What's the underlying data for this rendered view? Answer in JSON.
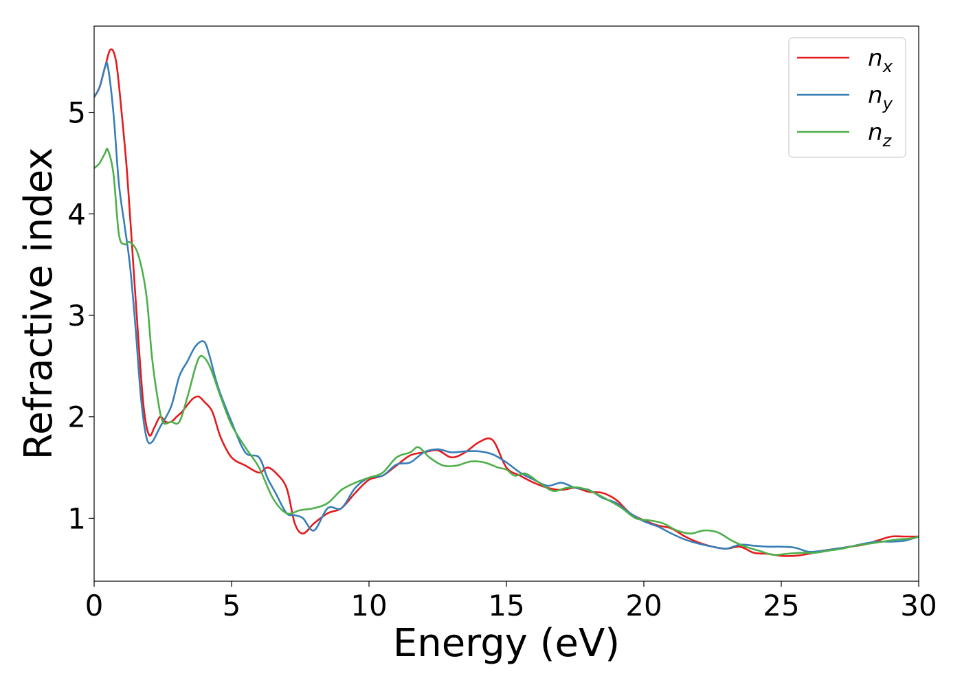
{
  "chart_data": {
    "type": "line",
    "title": "",
    "xlabel": "Energy (eV)",
    "ylabel": "Refractive index",
    "xlim": [
      0,
      30
    ],
    "ylim": [
      0.38,
      5.85
    ],
    "xticks": [
      0,
      5,
      10,
      15,
      20,
      25,
      30
    ],
    "yticks": [
      1,
      2,
      3,
      4,
      5
    ],
    "grid": false,
    "legend_position": "top-right",
    "series": [
      {
        "name": "n",
        "subscript": "x",
        "color": "#e41a1c",
        "x": [
          0,
          0.2,
          0.4,
          0.6,
          0.8,
          1.0,
          1.2,
          1.4,
          1.6,
          1.8,
          2.0,
          2.2,
          2.4,
          2.6,
          2.8,
          3.0,
          3.2,
          3.4,
          3.6,
          3.8,
          4.0,
          4.3,
          4.6,
          5.0,
          5.5,
          6.0,
          6.3,
          6.6,
          7.0,
          7.3,
          7.6,
          8.0,
          8.5,
          9.0,
          9.5,
          10.0,
          10.5,
          11.0,
          11.5,
          12.0,
          12.5,
          13.0,
          13.5,
          14.0,
          14.5,
          15.0,
          15.5,
          16.0,
          16.5,
          17.0,
          17.5,
          18.0,
          18.5,
          19.0,
          19.5,
          20.0,
          20.5,
          21.0,
          21.5,
          22.0,
          22.5,
          23.0,
          23.5,
          24.0,
          24.5,
          25.0,
          25.5,
          26.0,
          26.5,
          27.0,
          27.5,
          28.0,
          28.5,
          29.0,
          29.5,
          30.0
        ],
        "values": [
          5.15,
          5.25,
          5.45,
          5.62,
          5.5,
          5.0,
          4.4,
          3.6,
          2.8,
          2.1,
          1.82,
          1.9,
          2.0,
          1.95,
          1.95,
          2.0,
          2.05,
          2.12,
          2.18,
          2.2,
          2.15,
          2.05,
          1.8,
          1.6,
          1.52,
          1.45,
          1.5,
          1.45,
          1.3,
          0.95,
          0.85,
          0.95,
          1.05,
          1.1,
          1.25,
          1.38,
          1.42,
          1.52,
          1.62,
          1.65,
          1.67,
          1.6,
          1.65,
          1.75,
          1.77,
          1.5,
          1.42,
          1.35,
          1.3,
          1.28,
          1.3,
          1.26,
          1.25,
          1.18,
          1.05,
          0.98,
          0.93,
          0.9,
          0.82,
          0.76,
          0.72,
          0.7,
          0.72,
          0.66,
          0.65,
          0.63,
          0.63,
          0.65,
          0.68,
          0.7,
          0.72,
          0.74,
          0.78,
          0.82,
          0.82,
          0.82
        ]
      },
      {
        "name": "n",
        "subscript": "y",
        "color": "#377eb8",
        "x": [
          0,
          0.2,
          0.4,
          0.5,
          0.7,
          0.9,
          1.1,
          1.3,
          1.5,
          1.7,
          1.9,
          2.1,
          2.4,
          2.8,
          3.1,
          3.4,
          3.7,
          4.0,
          4.2,
          4.5,
          5.0,
          5.5,
          6.0,
          6.3,
          6.6,
          7.0,
          7.3,
          7.6,
          8.0,
          8.5,
          9.0,
          9.5,
          10.0,
          10.5,
          11.0,
          11.5,
          12.0,
          12.5,
          13.0,
          13.5,
          14.0,
          14.5,
          15.0,
          15.5,
          16.0,
          16.5,
          17.0,
          17.5,
          18.0,
          18.5,
          19.0,
          19.5,
          20.0,
          20.5,
          21.0,
          21.5,
          22.0,
          22.5,
          23.0,
          23.5,
          24.0,
          24.5,
          25.0,
          25.5,
          26.0,
          26.5,
          27.0,
          27.5,
          28.0,
          28.5,
          29.0,
          29.5,
          30.0
        ],
        "values": [
          5.15,
          5.25,
          5.45,
          5.45,
          5.0,
          4.3,
          3.9,
          3.5,
          2.9,
          2.2,
          1.8,
          1.75,
          1.9,
          2.1,
          2.4,
          2.55,
          2.7,
          2.74,
          2.6,
          2.3,
          1.95,
          1.65,
          1.6,
          1.4,
          1.25,
          1.05,
          1.03,
          1.0,
          0.88,
          1.1,
          1.1,
          1.3,
          1.4,
          1.42,
          1.53,
          1.55,
          1.65,
          1.68,
          1.65,
          1.66,
          1.66,
          1.63,
          1.55,
          1.45,
          1.38,
          1.32,
          1.35,
          1.3,
          1.28,
          1.2,
          1.15,
          1.05,
          0.97,
          0.92,
          0.85,
          0.79,
          0.75,
          0.72,
          0.7,
          0.74,
          0.73,
          0.72,
          0.72,
          0.71,
          0.67,
          0.68,
          0.7,
          0.72,
          0.75,
          0.77,
          0.77,
          0.78,
          0.82
        ]
      },
      {
        "name": "n",
        "subscript": "z",
        "color": "#4daf4a",
        "x": [
          0,
          0.2,
          0.4,
          0.5,
          0.7,
          0.9,
          1.1,
          1.3,
          1.6,
          1.9,
          2.1,
          2.3,
          2.5,
          2.8,
          3.1,
          3.4,
          3.7,
          3.9,
          4.2,
          4.6,
          5.0,
          5.5,
          6.0,
          6.5,
          7.0,
          7.5,
          8.0,
          8.5,
          9.0,
          9.5,
          10.0,
          10.5,
          11.0,
          11.5,
          11.8,
          12.2,
          12.7,
          13.2,
          13.7,
          14.2,
          14.7,
          15.0,
          15.3,
          15.7,
          16.2,
          16.7,
          17.2,
          17.7,
          18.2,
          18.7,
          19.2,
          19.7,
          20.2,
          20.7,
          21.2,
          21.7,
          22.2,
          22.7,
          23.2,
          23.7,
          24.2,
          24.7,
          25.2,
          25.7,
          26.2,
          26.7,
          27.2,
          27.7,
          28.2,
          28.7,
          29.2,
          29.7,
          30.0
        ],
        "values": [
          4.45,
          4.5,
          4.6,
          4.63,
          4.4,
          3.8,
          3.7,
          3.72,
          3.6,
          3.2,
          2.6,
          2.2,
          1.95,
          1.95,
          1.95,
          2.2,
          2.5,
          2.6,
          2.5,
          2.2,
          1.92,
          1.7,
          1.5,
          1.2,
          1.05,
          1.08,
          1.1,
          1.15,
          1.28,
          1.35,
          1.4,
          1.45,
          1.6,
          1.65,
          1.7,
          1.6,
          1.52,
          1.52,
          1.56,
          1.55,
          1.5,
          1.48,
          1.42,
          1.44,
          1.35,
          1.27,
          1.3,
          1.3,
          1.25,
          1.18,
          1.1,
          1.0,
          0.98,
          0.95,
          0.88,
          0.85,
          0.88,
          0.86,
          0.78,
          0.72,
          0.68,
          0.64,
          0.65,
          0.66,
          0.66,
          0.68,
          0.7,
          0.73,
          0.75,
          0.77,
          0.79,
          0.8,
          0.82
        ]
      }
    ]
  }
}
